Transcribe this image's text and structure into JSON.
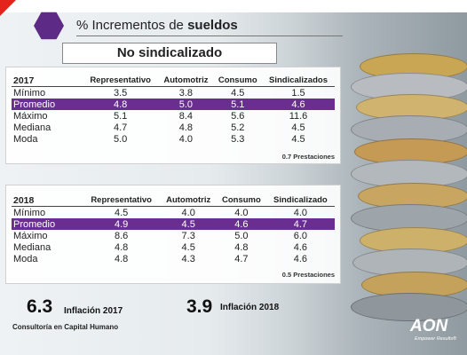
{
  "header": {
    "title_prefix": "% Incrementos de ",
    "title_bold": "sueldos",
    "subtitle": "No sindicalizado"
  },
  "table2017": {
    "year": "2017",
    "columns": [
      "Representativo",
      "Automotriz",
      "Consumo",
      "Sindicalizados"
    ],
    "rows": [
      {
        "label": "Mínimo",
        "values": [
          "3.5",
          "3.8",
          "4.5",
          "1.5"
        ]
      },
      {
        "label": "Promedio",
        "values": [
          "4.8",
          "5.0",
          "5.1",
          "4.6"
        ]
      },
      {
        "label": "Máximo",
        "values": [
          "5.1",
          "8.4",
          "5.6",
          "11.6"
        ]
      },
      {
        "label": "Mediana",
        "values": [
          "4.7",
          "4.8",
          "5.2",
          "4.5"
        ]
      },
      {
        "label": "Moda",
        "values": [
          "5.0",
          "4.0",
          "5.3",
          "4.5"
        ]
      }
    ],
    "note": "0.7 Prestaciones"
  },
  "table2018": {
    "year": "2018",
    "columns": [
      "Representativo",
      "Automotriz",
      "Consumo",
      "Sindicalizado"
    ],
    "rows": [
      {
        "label": "Mínimo",
        "values": [
          "4.5",
          "4.0",
          "4.0",
          "4.0"
        ]
      },
      {
        "label": "Promedio",
        "values": [
          "4.9",
          "4.5",
          "4.6",
          "4.7"
        ]
      },
      {
        "label": "Máximo",
        "values": [
          "8.6",
          "7.3",
          "5.0",
          "6.0"
        ]
      },
      {
        "label": "Mediana",
        "values": [
          "4.8",
          "4.5",
          "4.8",
          "4.6"
        ]
      },
      {
        "label": "Moda",
        "values": [
          "4.8",
          "4.3",
          "4.7",
          "4.6"
        ]
      }
    ],
    "note": "0.5 Prestaciones"
  },
  "inflation2017": {
    "value": "6.3",
    "label": "Inflación 2017"
  },
  "inflation2018": {
    "value": "3.9",
    "label": "Inflación 2018"
  },
  "footer": {
    "consultancy": "Consultoría en Capital Humano"
  },
  "logo": {
    "text": "AON",
    "tagline": "Empower Results®"
  },
  "colors": {
    "accent": "#6a2e90",
    "hexagon": "#5d2a86",
    "red": "#e4241c"
  }
}
